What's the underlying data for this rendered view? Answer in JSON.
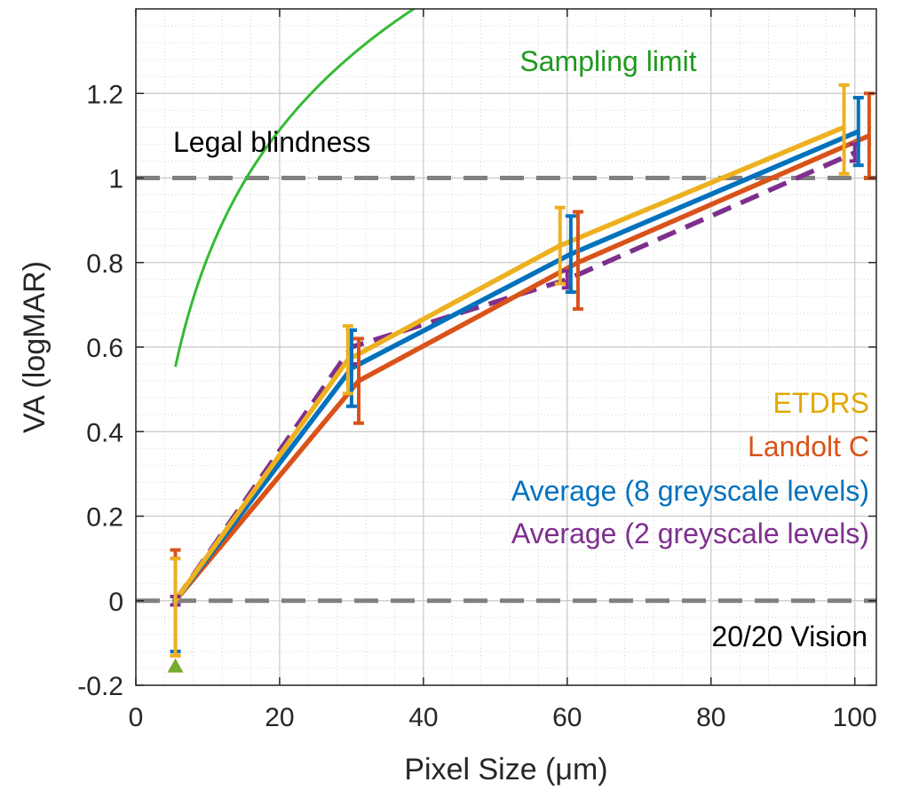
{
  "chart_data": {
    "type": "line",
    "title": "",
    "xlabel": "Pixel Size (μm)",
    "ylabel": "VA (logMAR)",
    "xlim": [
      0,
      103
    ],
    "ylim": [
      -0.2,
      1.4
    ],
    "xticks": [
      0,
      20,
      40,
      60,
      80,
      100
    ],
    "xtick_labels": [
      "0",
      "20",
      "40",
      "60",
      "80",
      "100"
    ],
    "yticks": [
      -0.2,
      0,
      0.2,
      0.4,
      0.6,
      0.8,
      1,
      1.2
    ],
    "ytick_labels": [
      "-0.2",
      "0",
      "0.2",
      "0.4",
      "0.6",
      "0.8",
      "1",
      "1.2"
    ],
    "grid": true,
    "minor_grid": true,
    "legend_placement": "right",
    "series": [
      {
        "name": "ETDRS",
        "color": "#EDB120",
        "style": "solid",
        "x": [
          5.5,
          29.5,
          59,
          98.5
        ],
        "y": [
          0.0,
          0.57,
          0.84,
          1.12
        ],
        "err_low": [
          0.13,
          0.08,
          0.09,
          0.11
        ],
        "err_high": [
          0.1,
          0.08,
          0.09,
          0.1
        ]
      },
      {
        "name": "Landolt C",
        "color": "#D95319",
        "style": "solid",
        "x": [
          5.5,
          31,
          61.5,
          102
        ],
        "y": [
          0.0,
          0.52,
          0.8,
          1.1
        ],
        "err_low": [
          0.13,
          0.1,
          0.11,
          0.1
        ],
        "err_high": [
          0.12,
          0.1,
          0.12,
          0.1
        ]
      },
      {
        "name": "Average (8 greyscale levels)",
        "color": "#0072BD",
        "style": "solid",
        "x": [
          5.5,
          30,
          60.5,
          100.5
        ],
        "y": [
          0.0,
          0.55,
          0.82,
          1.11
        ],
        "err_low": [
          0.12,
          0.09,
          0.09,
          0.08
        ],
        "err_high": [
          0.1,
          0.09,
          0.09,
          0.08
        ]
      },
      {
        "name": "Average (2 greyscale levels)",
        "color": "#7E2F8E",
        "style": "dashed",
        "x": [
          5.5,
          30,
          60,
          100
        ],
        "y": [
          0.0,
          0.6,
          0.76,
          1.06
        ],
        "err_low": [
          0.01,
          0.04,
          0.02,
          0.02
        ],
        "err_high": [
          0.01,
          0.04,
          0.02,
          0.02
        ]
      }
    ],
    "sampling_limit": {
      "name": "Sampling limit",
      "color": "#33BB33",
      "coefficient": 0.65,
      "x_start": 5.5,
      "x_end": 100
    },
    "reference_lines": [
      {
        "y": 1.0,
        "label": "Legal blindness",
        "color": "#808080"
      },
      {
        "y": 0.0,
        "label": "20/20 Vision",
        "color": "#808080"
      }
    ],
    "markers": [
      {
        "x": 5.5,
        "y": -0.155,
        "color": "#77AC30",
        "shape": "triangle"
      }
    ]
  }
}
